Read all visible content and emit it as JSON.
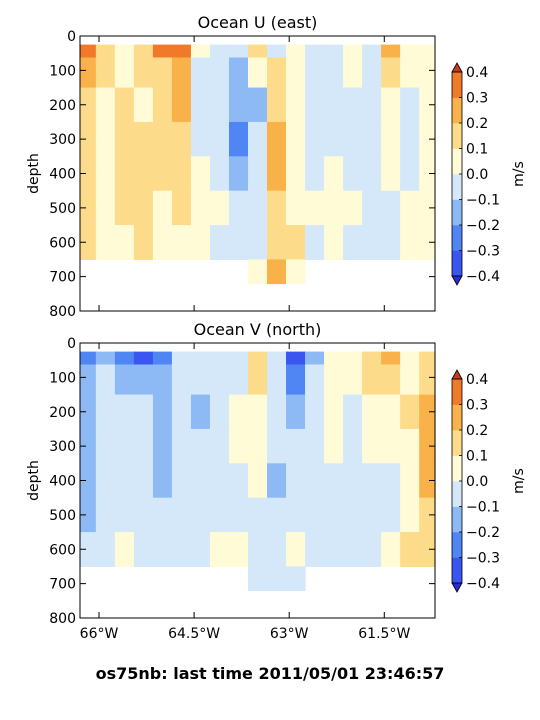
{
  "chart_data": [
    {
      "type": "contourf",
      "title": "Ocean U (east)",
      "xlabel": "",
      "ylabel": "depth",
      "xlim": [
        -66.3,
        -60.7
      ],
      "ylim": [
        800,
        0
      ],
      "x_ticks": [
        -66.0,
        -64.5,
        -63.0,
        -61.5
      ],
      "x_tick_labels": [],
      "y_ticks": [
        0,
        100,
        200,
        300,
        400,
        500,
        600,
        700,
        800
      ],
      "y_tick_labels": [
        "0",
        "100",
        "200",
        "300",
        "400",
        "500",
        "600",
        "700",
        "800"
      ],
      "colorbar": {
        "label": "m/s",
        "levels": [
          -0.4,
          -0.3,
          -0.2,
          -0.1,
          0.0,
          0.1,
          0.2,
          0.3,
          0.4
        ],
        "tick_labels": [
          "0.4",
          "0.3",
          "0.2",
          "0.1",
          "0.0",
          "−0.1",
          "−0.2",
          "−0.3",
          "−0.4"
        ],
        "extend": "both"
      },
      "x": [
        -66.2,
        -65.9,
        -65.6,
        -65.3,
        -65.0,
        -64.7,
        -64.4,
        -64.1,
        -63.8,
        -63.5,
        -63.2,
        -62.9,
        -62.6,
        -62.3,
        -62.0,
        -61.7,
        -61.4,
        -61.1,
        -60.8
      ],
      "depth": [
        25,
        100,
        200,
        300,
        400,
        500,
        600,
        700
      ],
      "values": [
        [
          0.35,
          0.1,
          0.05,
          0.15,
          0.32,
          0.3,
          0.05,
          -0.05,
          -0.05,
          0.1,
          -0.05,
          0.0,
          -0.05,
          -0.1,
          0.05,
          -0.1,
          0.25,
          0.05,
          0.05
        ],
        [
          0.25,
          0.1,
          0.05,
          0.1,
          0.18,
          0.2,
          -0.05,
          -0.05,
          -0.15,
          0.05,
          0.15,
          0.05,
          -0.05,
          -0.1,
          0.0,
          -0.05,
          0.15,
          0.0,
          0.05
        ],
        [
          0.15,
          0.05,
          0.1,
          0.05,
          0.15,
          0.25,
          -0.05,
          -0.1,
          -0.2,
          -0.15,
          0.15,
          0.05,
          -0.05,
          -0.1,
          -0.05,
          -0.05,
          0.05,
          -0.05,
          0.0
        ],
        [
          0.15,
          0.05,
          0.15,
          0.1,
          0.15,
          0.18,
          -0.05,
          -0.1,
          -0.25,
          -0.1,
          0.25,
          0.05,
          -0.05,
          -0.05,
          -0.05,
          -0.05,
          0.0,
          -0.05,
          0.0
        ],
        [
          0.1,
          0.05,
          0.18,
          0.15,
          0.12,
          0.15,
          0.0,
          -0.05,
          -0.12,
          -0.05,
          0.25,
          0.05,
          -0.05,
          0.05,
          -0.05,
          -0.05,
          0.0,
          -0.05,
          0.0
        ],
        [
          0.1,
          0.05,
          0.1,
          0.18,
          0.05,
          0.15,
          0.05,
          0.05,
          -0.05,
          -0.05,
          0.15,
          0.05,
          0.0,
          0.05,
          0.0,
          -0.05,
          -0.05,
          0.0,
          0.0
        ],
        [
          0.12,
          0.05,
          0.05,
          0.1,
          0.05,
          0.05,
          0.0,
          -0.05,
          -0.05,
          -0.05,
          0.15,
          0.1,
          -0.05,
          0.0,
          -0.05,
          -0.05,
          -0.05,
          0.0,
          0.0
        ],
        [
          null,
          null,
          null,
          null,
          null,
          null,
          null,
          null,
          null,
          0.05,
          0.2,
          0.05,
          null,
          null,
          null,
          null,
          null,
          null,
          null
        ]
      ]
    },
    {
      "type": "contourf",
      "title": "Ocean V (north)",
      "xlabel": "",
      "ylabel": "depth",
      "xlim": [
        -66.3,
        -60.7
      ],
      "ylim": [
        800,
        0
      ],
      "x_ticks": [
        -66.0,
        -64.5,
        -63.0,
        -61.5
      ],
      "x_tick_labels": [
        "66°W",
        "64.5°W",
        "63°W",
        "61.5°W"
      ],
      "y_ticks": [
        0,
        100,
        200,
        300,
        400,
        500,
        600,
        700,
        800
      ],
      "y_tick_labels": [
        "0",
        "100",
        "200",
        "300",
        "400",
        "500",
        "600",
        "700",
        "800"
      ],
      "colorbar": {
        "label": "m/s",
        "levels": [
          -0.4,
          -0.3,
          -0.2,
          -0.1,
          0.0,
          0.1,
          0.2,
          0.3,
          0.4
        ],
        "tick_labels": [
          "0.4",
          "0.3",
          "0.2",
          "0.1",
          "0.0",
          "−0.1",
          "−0.2",
          "−0.3",
          "−0.4"
        ],
        "extend": "both"
      },
      "x": [
        -66.2,
        -65.9,
        -65.6,
        -65.3,
        -65.0,
        -64.7,
        -64.4,
        -64.1,
        -63.8,
        -63.5,
        -63.2,
        -62.9,
        -62.6,
        -62.3,
        -62.0,
        -61.7,
        -61.4,
        -61.1,
        -60.8
      ],
      "depth": [
        25,
        100,
        200,
        300,
        400,
        500,
        600,
        700
      ],
      "values": [
        [
          -0.3,
          -0.15,
          -0.25,
          -0.35,
          -0.3,
          -0.05,
          -0.1,
          -0.1,
          -0.05,
          0.1,
          -0.05,
          -0.38,
          -0.15,
          0.05,
          0.05,
          0.15,
          0.25,
          0.0,
          0.1
        ],
        [
          -0.2,
          -0.1,
          -0.15,
          -0.15,
          -0.2,
          -0.05,
          -0.05,
          -0.05,
          -0.05,
          0.1,
          -0.05,
          -0.25,
          -0.1,
          0.05,
          0.0,
          0.1,
          0.1,
          0.05,
          0.15
        ],
        [
          -0.15,
          -0.1,
          -0.1,
          -0.1,
          -0.15,
          -0.05,
          -0.15,
          -0.05,
          0.05,
          0.05,
          -0.05,
          -0.15,
          -0.05,
          0.05,
          -0.05,
          0.05,
          0.05,
          0.1,
          0.2
        ],
        [
          -0.15,
          -0.05,
          -0.05,
          -0.05,
          -0.2,
          -0.1,
          -0.1,
          -0.05,
          0.05,
          0.05,
          -0.1,
          -0.1,
          -0.05,
          0.0,
          -0.05,
          0.05,
          0.05,
          0.05,
          0.2
        ],
        [
          -0.15,
          -0.05,
          -0.05,
          -0.05,
          -0.2,
          -0.1,
          -0.1,
          -0.05,
          -0.05,
          0.0,
          -0.15,
          -0.05,
          -0.05,
          -0.05,
          -0.05,
          -0.05,
          -0.05,
          0.05,
          0.2
        ],
        [
          -0.15,
          -0.05,
          -0.05,
          -0.05,
          -0.1,
          -0.1,
          -0.05,
          -0.05,
          -0.05,
          -0.05,
          -0.1,
          -0.05,
          -0.05,
          -0.05,
          -0.05,
          -0.05,
          -0.05,
          0.05,
          0.15
        ],
        [
          -0.1,
          -0.05,
          0.05,
          -0.05,
          -0.05,
          -0.05,
          -0.05,
          0.0,
          0.0,
          -0.05,
          -0.05,
          0.0,
          -0.05,
          -0.05,
          -0.05,
          -0.05,
          0.0,
          0.1,
          0.1
        ],
        [
          null,
          null,
          null,
          null,
          null,
          null,
          null,
          null,
          null,
          -0.05,
          -0.05,
          -0.05,
          null,
          null,
          null,
          null,
          null,
          null,
          null
        ]
      ]
    }
  ],
  "palette": {
    "below": "#2b2bd6",
    "bins": [
      "#3a55f0",
      "#4f86f3",
      "#8dbaf5",
      "#d4e8fa",
      "#fffbd6",
      "#fcdc8a",
      "#f9b24a",
      "#f07a2a"
    ],
    "above": "#c83a1a"
  },
  "footer": "os75nb: last time 2011/05/01 23:46:57"
}
